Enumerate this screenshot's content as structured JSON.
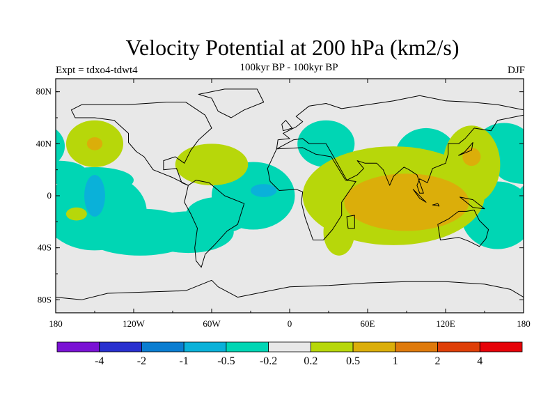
{
  "chart_data": {
    "type": "heatmap",
    "title": "Velocity Potential at 200 hPa (km2/s)",
    "subtitle": "100kyr BP - 100kyr BP",
    "left_label": "Expt = tdxo4-tdwt4",
    "right_label": "DJF",
    "x_ticks": [
      "180",
      "120W",
      "60W",
      "0",
      "60E",
      "120E",
      "180"
    ],
    "y_ticks": [
      "80N",
      "40N",
      "0",
      "40S",
      "80S"
    ],
    "xlim": [
      -180,
      180
    ],
    "ylim": [
      -90,
      90
    ],
    "colorbar": {
      "labels": [
        "-4",
        "-2",
        "-1",
        "-0.5",
        "-0.2",
        "0.2",
        "0.5",
        "1",
        "2",
        "4"
      ],
      "colors": [
        "#7a12d4",
        "#2830cf",
        "#0a7dd1",
        "#0ab1d9",
        "#00d6b4",
        "#e8e8e8",
        "#b7d70a",
        "#dbae0a",
        "#df7a0c",
        "#df3f08",
        "#e60309"
      ]
    },
    "regions": [
      {
        "level": "-0.2",
        "lon": -178,
        "lat": 18,
        "rlon": 22,
        "rlat": 9
      },
      {
        "level": "-0.2",
        "lon": -150,
        "lat": 12,
        "rlon": 30,
        "rlat": 10
      },
      {
        "level": "-0.2",
        "lon": -150,
        "lat": -12,
        "rlon": 40,
        "rlat": 30
      },
      {
        "level": "-0.2",
        "lon": -115,
        "lat": -28,
        "rlon": 45,
        "rlat": 18
      },
      {
        "level": "-0.2",
        "lon": -78,
        "lat": -28,
        "rlon": 35,
        "rlat": 16
      },
      {
        "level": "-0.2",
        "lon": -28,
        "lat": 0,
        "rlon": 32,
        "rlat": 26
      },
      {
        "level": "-0.2",
        "lon": -55,
        "lat": -15,
        "rlon": 25,
        "rlat": 14
      },
      {
        "level": "-0.2",
        "lon": 28,
        "lat": 40,
        "rlon": 22,
        "rlat": 18
      },
      {
        "level": "-0.2",
        "lon": 105,
        "lat": 30,
        "rlon": 24,
        "rlat": 22
      },
      {
        "level": "-0.2",
        "lon": 165,
        "lat": 38,
        "rlon": 22,
        "rlat": 18
      },
      {
        "level": "-0.2",
        "lon": 160,
        "lat": -15,
        "rlon": 28,
        "rlat": 26
      },
      {
        "level": "-0.5",
        "lon": -150,
        "lat": 0,
        "rlon": 8,
        "rlat": 16
      },
      {
        "level": "-0.5",
        "lon": -20,
        "lat": 4,
        "rlon": 10,
        "rlat": 5
      },
      {
        "level": "0.2",
        "lon": -150,
        "lat": 40,
        "rlon": 22,
        "rlat": 18
      },
      {
        "level": "0.2",
        "lon": -60,
        "lat": 24,
        "rlon": 28,
        "rlat": 16
      },
      {
        "level": "0.2",
        "lon": -164,
        "lat": -14,
        "rlon": 8,
        "rlat": 5
      },
      {
        "level": "0.2",
        "lon": 80,
        "lat": 0,
        "rlon": 70,
        "rlat": 38
      },
      {
        "level": "0.2",
        "lon": 38,
        "lat": -28,
        "rlon": 12,
        "rlat": 18
      },
      {
        "level": "0.2",
        "lon": 140,
        "lat": 24,
        "rlon": 22,
        "rlat": 30
      },
      {
        "level": "0.5",
        "lon": -150,
        "lat": 40,
        "rlon": 6,
        "rlat": 5
      },
      {
        "level": "0.5",
        "lon": 90,
        "lat": -5,
        "rlon": 48,
        "rlat": 22
      },
      {
        "level": "0.5",
        "lon": 140,
        "lat": 30,
        "rlon": 7,
        "rlat": 7
      }
    ],
    "land": [
      [
        [
          -168,
          66
        ],
        [
          -160,
          70
        ],
        [
          -140,
          70
        ],
        [
          -125,
          70
        ],
        [
          -95,
          72
        ],
        [
          -80,
          72
        ],
        [
          -65,
          62
        ],
        [
          -60,
          52
        ],
        [
          -70,
          43
        ],
        [
          -76,
          35
        ],
        [
          -81,
          25
        ],
        [
          -88,
          30
        ],
        [
          -97,
          27
        ],
        [
          -97,
          20
        ],
        [
          -87,
          21
        ],
        [
          -83,
          10
        ],
        [
          -78,
          8
        ],
        [
          -90,
          14
        ],
        [
          -105,
          20
        ],
        [
          -112,
          30
        ],
        [
          -118,
          34
        ],
        [
          -124,
          41
        ],
        [
          -124,
          48
        ],
        [
          -135,
          58
        ],
        [
          -150,
          60
        ],
        [
          -165,
          60
        ],
        [
          -168,
          66
        ]
      ],
      [
        [
          -78,
          8
        ],
        [
          -72,
          12
        ],
        [
          -62,
          10
        ],
        [
          -50,
          0
        ],
        [
          -35,
          -6
        ],
        [
          -40,
          -22
        ],
        [
          -48,
          -27
        ],
        [
          -58,
          -38
        ],
        [
          -65,
          -45
        ],
        [
          -68,
          -55
        ],
        [
          -72,
          -50
        ],
        [
          -73,
          -40
        ],
        [
          -71,
          -25
        ],
        [
          -76,
          -14
        ],
        [
          -81,
          -5
        ],
        [
          -78,
          8
        ]
      ],
      [
        [
          -45,
          60
        ],
        [
          -55,
          65
        ],
        [
          -60,
          75
        ],
        [
          -70,
          78
        ],
        [
          -50,
          82
        ],
        [
          -25,
          82
        ],
        [
          -20,
          72
        ],
        [
          -35,
          66
        ],
        [
          -45,
          60
        ]
      ],
      [
        [
          -10,
          36
        ],
        [
          -17,
          21
        ],
        [
          -15,
          11
        ],
        [
          -8,
          4
        ],
        [
          5,
          5
        ],
        [
          10,
          3
        ],
        [
          9,
          -5
        ],
        [
          12,
          -17
        ],
        [
          18,
          -34
        ],
        [
          26,
          -34
        ],
        [
          33,
          -26
        ],
        [
          40,
          -15
        ],
        [
          40,
          -5
        ],
        [
          51,
          11
        ],
        [
          43,
          12
        ],
        [
          32,
          30
        ],
        [
          20,
          32
        ],
        [
          10,
          37
        ],
        [
          -10,
          36
        ]
      ],
      [
        [
          -10,
          36
        ],
        [
          -9,
          43
        ],
        [
          0,
          44
        ],
        [
          -5,
          48
        ],
        [
          5,
          53
        ],
        [
          10,
          57
        ],
        [
          5,
          61
        ],
        [
          15,
          69
        ],
        [
          28,
          71
        ],
        [
          40,
          67
        ],
        [
          60,
          70
        ],
        [
          80,
          73
        ],
        [
          100,
          77
        ],
        [
          120,
          73
        ],
        [
          140,
          72
        ],
        [
          160,
          70
        ],
        [
          180,
          66
        ],
        [
          180,
          62
        ],
        [
          170,
          60
        ],
        [
          160,
          58
        ],
        [
          155,
          50
        ],
        [
          142,
          52
        ],
        [
          135,
          44
        ],
        [
          130,
          40
        ],
        [
          122,
          40
        ],
        [
          122,
          32
        ],
        [
          120,
          25
        ],
        [
          110,
          21
        ],
        [
          106,
          10
        ],
        [
          100,
          13
        ],
        [
          98,
          8
        ],
        [
          100,
          2
        ],
        [
          103,
          2
        ],
        [
          98,
          16
        ],
        [
          92,
          20
        ],
        [
          88,
          22
        ],
        [
          80,
          15
        ],
        [
          77,
          8
        ],
        [
          72,
          20
        ],
        [
          67,
          25
        ],
        [
          58,
          25
        ],
        [
          52,
          27
        ],
        [
          57,
          21
        ],
        [
          52,
          16
        ],
        [
          44,
          12
        ],
        [
          35,
          28
        ],
        [
          28,
          40
        ],
        [
          26,
          40
        ],
        [
          15,
          40
        ],
        [
          10,
          44
        ],
        [
          3,
          43
        ],
        [
          -10,
          36
        ]
      ],
      [
        [
          114,
          -22
        ],
        [
          122,
          -18
        ],
        [
          130,
          -12
        ],
        [
          136,
          -12
        ],
        [
          142,
          -11
        ],
        [
          146,
          -19
        ],
        [
          153,
          -26
        ],
        [
          151,
          -33
        ],
        [
          146,
          -39
        ],
        [
          138,
          -35
        ],
        [
          130,
          -32
        ],
        [
          116,
          -34
        ],
        [
          114,
          -22
        ]
      ],
      [
        [
          -180,
          -78
        ],
        [
          -160,
          -80
        ],
        [
          -140,
          -75
        ],
        [
          -110,
          -74
        ],
        [
          -80,
          -73
        ],
        [
          -60,
          -65
        ],
        [
          -55,
          -70
        ],
        [
          -40,
          -78
        ],
        [
          -20,
          -74
        ],
        [
          0,
          -70
        ],
        [
          30,
          -69
        ],
        [
          60,
          -67
        ],
        [
          90,
          -66
        ],
        [
          120,
          -66
        ],
        [
          150,
          -68
        ],
        [
          170,
          -72
        ],
        [
          180,
          -78
        ],
        [
          180,
          -90
        ],
        [
          -180,
          -90
        ]
      ],
      [
        [
          44,
          -16
        ],
        [
          50,
          -15
        ],
        [
          50,
          -25
        ],
        [
          45,
          -25
        ],
        [
          44,
          -16
        ]
      ],
      [
        [
          95,
          5
        ],
        [
          105,
          -5
        ],
        [
          100,
          -2
        ],
        [
          95,
          5
        ]
      ],
      [
        [
          110,
          -7
        ],
        [
          115,
          -8
        ],
        [
          114,
          -6
        ],
        [
          110,
          -7
        ]
      ],
      [
        [
          131,
          -1
        ],
        [
          141,
          -3
        ],
        [
          150,
          -10
        ],
        [
          141,
          -9
        ],
        [
          131,
          -1
        ]
      ],
      [
        [
          130,
          31
        ],
        [
          135,
          34
        ],
        [
          141,
          41
        ],
        [
          140,
          35
        ],
        [
          130,
          31
        ]
      ],
      [
        [
          -5,
          50
        ],
        [
          2,
          52
        ],
        [
          -3,
          58
        ],
        [
          -6,
          55
        ],
        [
          -5,
          50
        ]
      ]
    ]
  }
}
